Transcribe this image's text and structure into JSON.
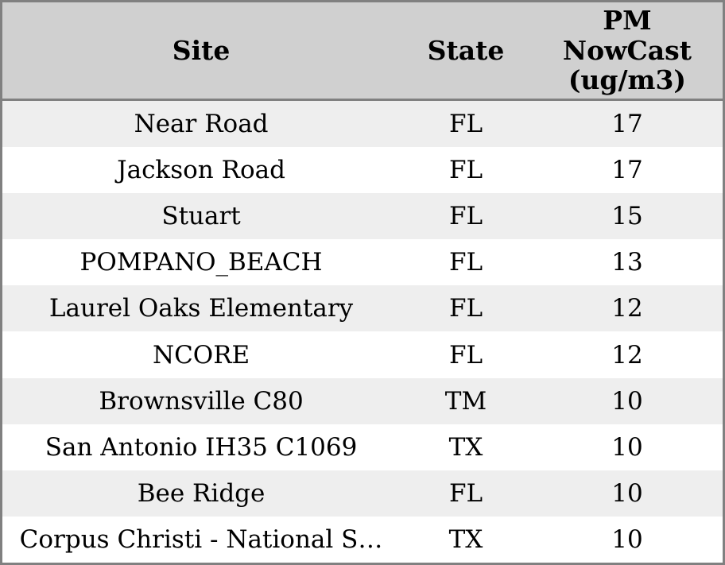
{
  "chart_data": {
    "type": "table",
    "columns": [
      "Site",
      "State",
      "PM NowCast (ug/m3)"
    ],
    "rows": [
      [
        "Near Road",
        "FL",
        17
      ],
      [
        "Jackson Road",
        "FL",
        17
      ],
      [
        "Stuart",
        "FL",
        15
      ],
      [
        "POMPANO_BEACH",
        "FL",
        13
      ],
      [
        "Laurel Oaks Elementary",
        "FL",
        12
      ],
      [
        "NCORE",
        "FL",
        12
      ],
      [
        "Brownsville C80",
        "TM",
        10
      ],
      [
        "San Antonio IH35 C1069",
        "TX",
        10
      ],
      [
        "Bee Ridge",
        "FL",
        10
      ],
      [
        "Corpus Christi - National S…",
        "TX",
        10
      ]
    ],
    "layout_hints": {
      "zebra_striping": true,
      "header_position": "top",
      "sorted_by": "PM NowCast (ug/m3) descending"
    }
  },
  "colors": {
    "header_bg": "#d0d0d0",
    "row_stripe_bg": "#eeeeee",
    "row_plain_bg": "#ffffff",
    "frame_border": "#808080",
    "text": "#000000"
  }
}
